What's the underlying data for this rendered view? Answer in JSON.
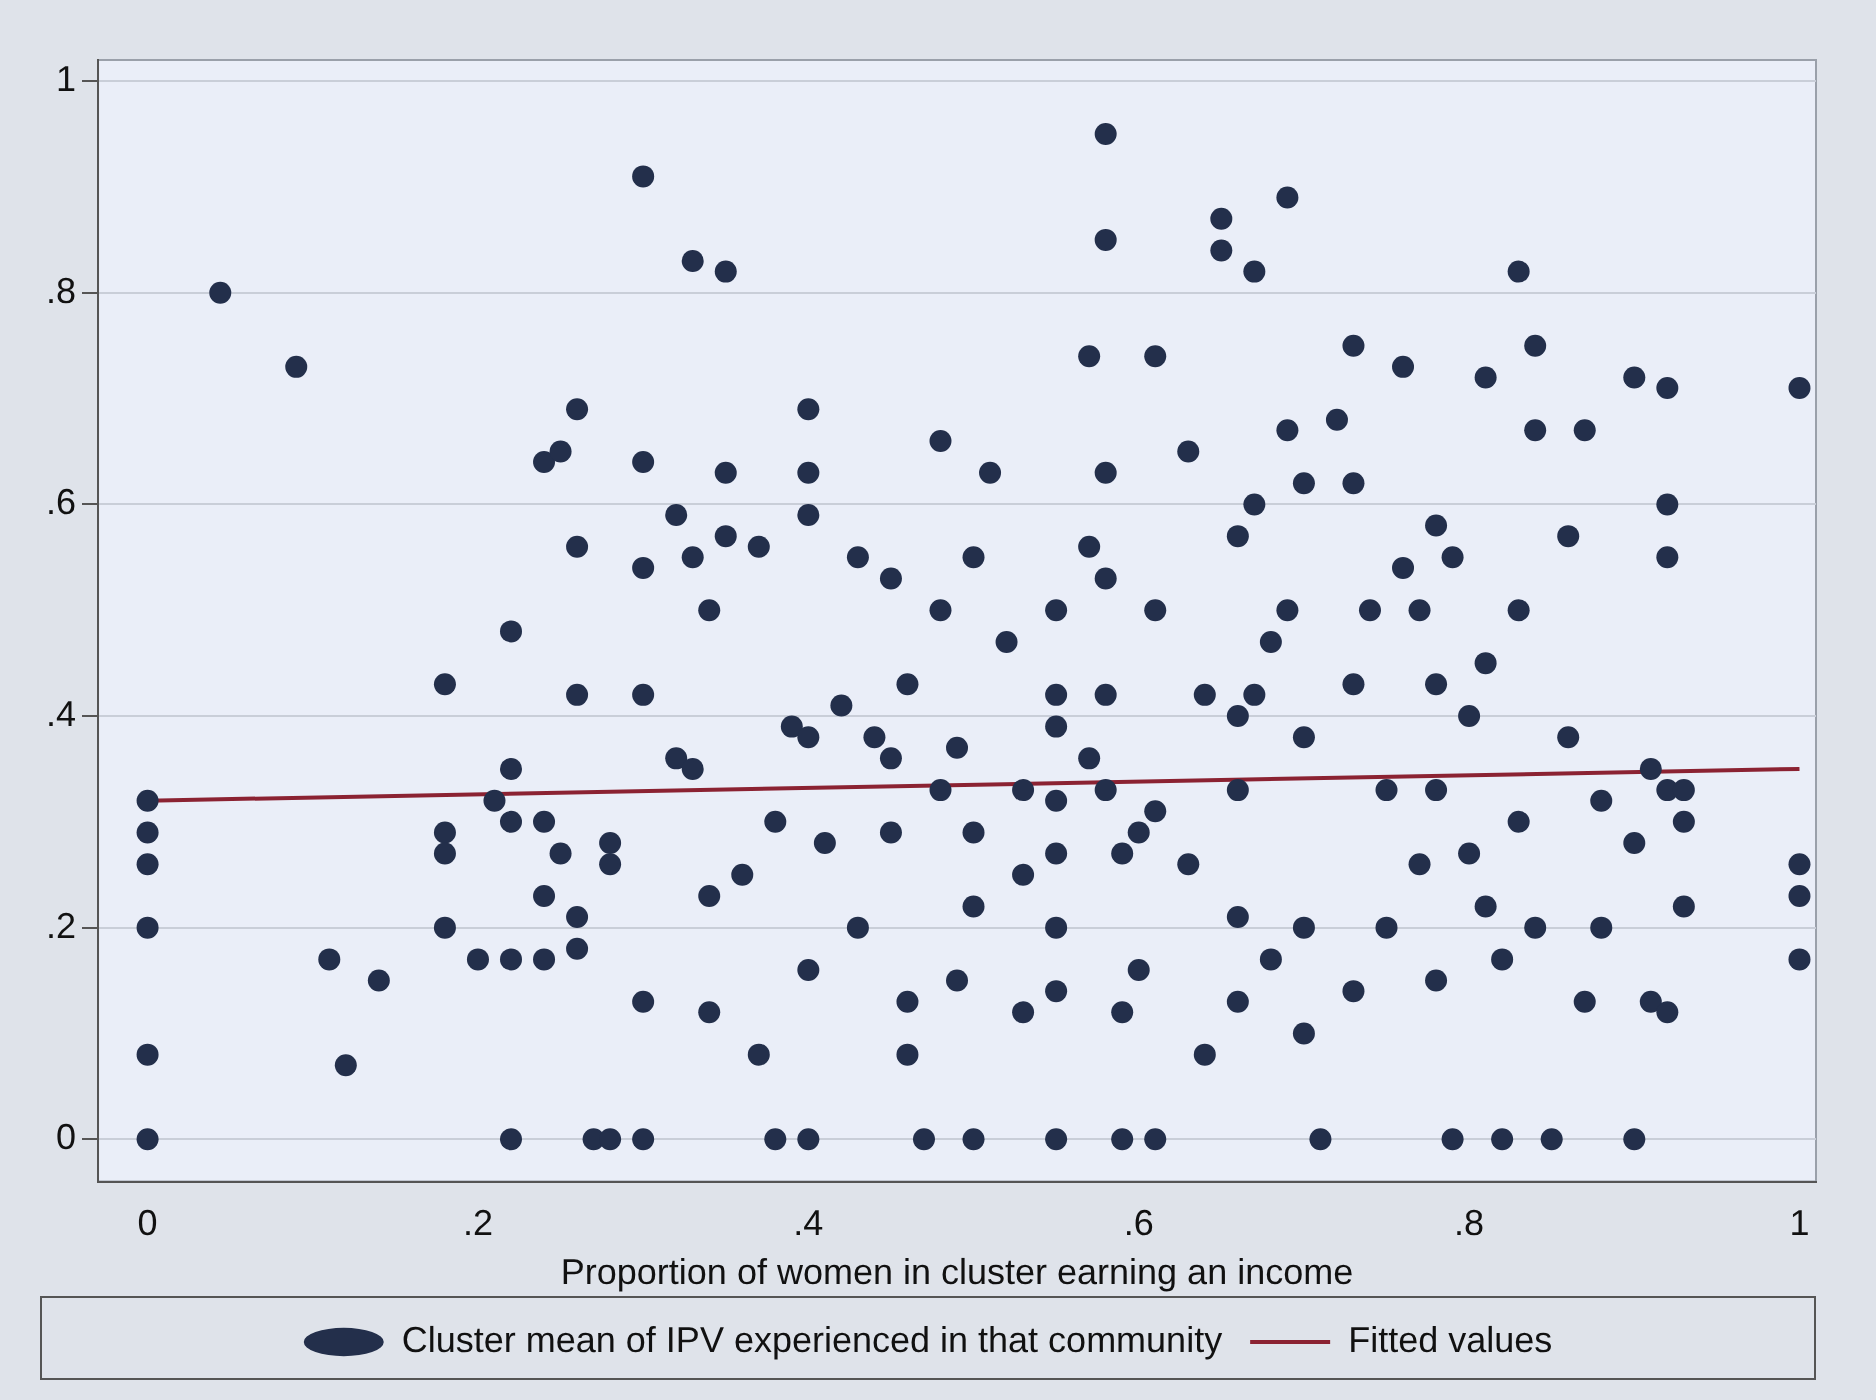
{
  "chart_data": {
    "type": "scatter",
    "xlabel": "Proportion of women in cluster earning an income",
    "xlim": [
      -0.03,
      1.01
    ],
    "ylim": [
      -0.04,
      1.02
    ],
    "xticks": [
      {
        "value": 0,
        "label": "0"
      },
      {
        "value": 0.2,
        "label": ".2"
      },
      {
        "value": 0.4,
        "label": ".4"
      },
      {
        "value": 0.6,
        "label": ".6"
      },
      {
        "value": 0.8,
        "label": ".8"
      },
      {
        "value": 1,
        "label": "1"
      }
    ],
    "yticks": [
      {
        "value": 0,
        "label": "0"
      },
      {
        "value": 0.2,
        "label": ".2"
      },
      {
        "value": 0.4,
        "label": ".4"
      },
      {
        "value": 0.6,
        "label": ".6"
      },
      {
        "value": 0.8,
        "label": ".8"
      },
      {
        "value": 1,
        "label": "1"
      }
    ],
    "grid": "y",
    "legend": "bottom",
    "series": [
      {
        "name": "Cluster mean of IPV experienced in that community",
        "type": "scatter",
        "marker": "circle",
        "color": "#232f4b",
        "x": [
          0,
          0,
          0,
          0,
          0,
          0,
          0.044,
          0.09,
          0.11,
          0.14,
          0.12,
          0.18,
          0.18,
          0.18,
          0.18,
          0.2,
          0.22,
          0.21,
          0.22,
          0.22,
          0.22,
          0.22,
          0.24,
          0.25,
          0.24,
          0.24,
          0.24,
          0.25,
          0.26,
          0.26,
          0.26,
          0.26,
          0.26,
          0.27,
          0.28,
          0.28,
          0.28,
          0.3,
          0.3,
          0.3,
          0.3,
          0.3,
          0.3,
          0.32,
          0.32,
          0.33,
          0.33,
          0.33,
          0.34,
          0.34,
          0.34,
          0.35,
          0.35,
          0.35,
          0.36,
          0.37,
          0.37,
          0.38,
          0.38,
          0.39,
          0.4,
          0.4,
          0.4,
          0.4,
          0.4,
          0.4,
          0.41,
          0.42,
          0.43,
          0.43,
          0.44,
          0.45,
          0.45,
          0.45,
          0.46,
          0.46,
          0.46,
          0.47,
          0.48,
          0.48,
          0.48,
          0.49,
          0.49,
          0.5,
          0.5,
          0.5,
          0.5,
          0.51,
          0.52,
          0.53,
          0.53,
          0.53,
          0.55,
          0.55,
          0.55,
          0.55,
          0.55,
          0.55,
          0.55,
          0.55,
          0.57,
          0.57,
          0.57,
          0.58,
          0.58,
          0.58,
          0.58,
          0.58,
          0.58,
          0.59,
          0.59,
          0.59,
          0.6,
          0.6,
          0.61,
          0.61,
          0.61,
          0.61,
          0.63,
          0.63,
          0.64,
          0.64,
          0.65,
          0.65,
          0.66,
          0.66,
          0.66,
          0.66,
          0.66,
          0.67,
          0.67,
          0.67,
          0.68,
          0.68,
          0.69,
          0.69,
          0.69,
          0.7,
          0.7,
          0.7,
          0.7,
          0.71,
          0.72,
          0.73,
          0.73,
          0.73,
          0.73,
          0.74,
          0.75,
          0.75,
          0.76,
          0.76,
          0.77,
          0.77,
          0.78,
          0.78,
          0.78,
          0.78,
          0.79,
          0.79,
          0.8,
          0.8,
          0.81,
          0.81,
          0.81,
          0.82,
          0.82,
          0.83,
          0.83,
          0.83,
          0.84,
          0.84,
          0.84,
          0.85,
          0.86,
          0.86,
          0.87,
          0.87,
          0.88,
          0.88,
          0.9,
          0.9,
          0.9,
          0.91,
          0.91,
          0.92,
          0.92,
          0.92,
          0.92,
          0.92,
          0.93,
          0.93,
          0.93,
          1,
          1,
          1,
          1
        ],
        "values": [
          0.32,
          0.29,
          0.26,
          0.2,
          0.08,
          0,
          0.8,
          0.73,
          0.17,
          0.15,
          0.07,
          0.43,
          0.29,
          0.27,
          0.2,
          0.17,
          0.48,
          0.32,
          0.35,
          0.3,
          0.17,
          0,
          0.64,
          0.65,
          0.3,
          0.23,
          0.17,
          0.27,
          0.56,
          0.69,
          0.42,
          0.21,
          0.18,
          0,
          0.26,
          0.28,
          0,
          0.91,
          0.64,
          0.54,
          0.42,
          0.13,
          0,
          0.59,
          0.36,
          0.35,
          0.83,
          0.55,
          0.5,
          0.23,
          0.12,
          0.82,
          0.63,
          0.57,
          0.25,
          0.56,
          0.08,
          0,
          0.3,
          0.39,
          0.69,
          0.63,
          0.59,
          0.38,
          0.16,
          0,
          0.28,
          0.41,
          0.55,
          0.2,
          0.38,
          0.53,
          0.36,
          0.29,
          0.43,
          0.13,
          0.08,
          0,
          0.66,
          0.5,
          0.33,
          0.37,
          0.15,
          0.55,
          0.29,
          0.22,
          0,
          0.63,
          0.47,
          0.33,
          0.25,
          0.12,
          0.5,
          0.42,
          0.39,
          0.32,
          0.27,
          0.2,
          0.14,
          0,
          0.74,
          0.56,
          0.36,
          0.95,
          0.85,
          0.63,
          0.53,
          0.42,
          0.33,
          0.27,
          0.12,
          0,
          0.16,
          0.29,
          0.74,
          0.5,
          0.31,
          0,
          0.26,
          0.65,
          0.42,
          0.08,
          0.87,
          0.84,
          0.57,
          0.4,
          0.33,
          0.21,
          0.13,
          0.82,
          0.6,
          0.42,
          0.47,
          0.17,
          0.89,
          0.67,
          0.5,
          0.62,
          0.38,
          0.2,
          0.1,
          0,
          0.68,
          0.75,
          0.62,
          0.43,
          0.14,
          0.5,
          0.33,
          0.2,
          0.73,
          0.54,
          0.5,
          0.26,
          0.58,
          0.43,
          0.33,
          0.15,
          0.55,
          0,
          0.4,
          0.27,
          0.72,
          0.45,
          0.22,
          0.17,
          0,
          0.82,
          0.5,
          0.3,
          0.75,
          0.67,
          0.2,
          0,
          0.38,
          0.57,
          0.67,
          0.13,
          0.2,
          0.32,
          0.72,
          0.28,
          0,
          0.13,
          0.35,
          0.71,
          0.6,
          0.33,
          0.55,
          0.12,
          0.22,
          0.33,
          0.3,
          0.71,
          0.26,
          0.23,
          0.17
        ]
      },
      {
        "name": "Fitted values",
        "type": "line",
        "marker": "none",
        "color": "#8b2232",
        "x": [
          0,
          1
        ],
        "values": [
          0.32,
          0.35
        ]
      }
    ]
  }
}
